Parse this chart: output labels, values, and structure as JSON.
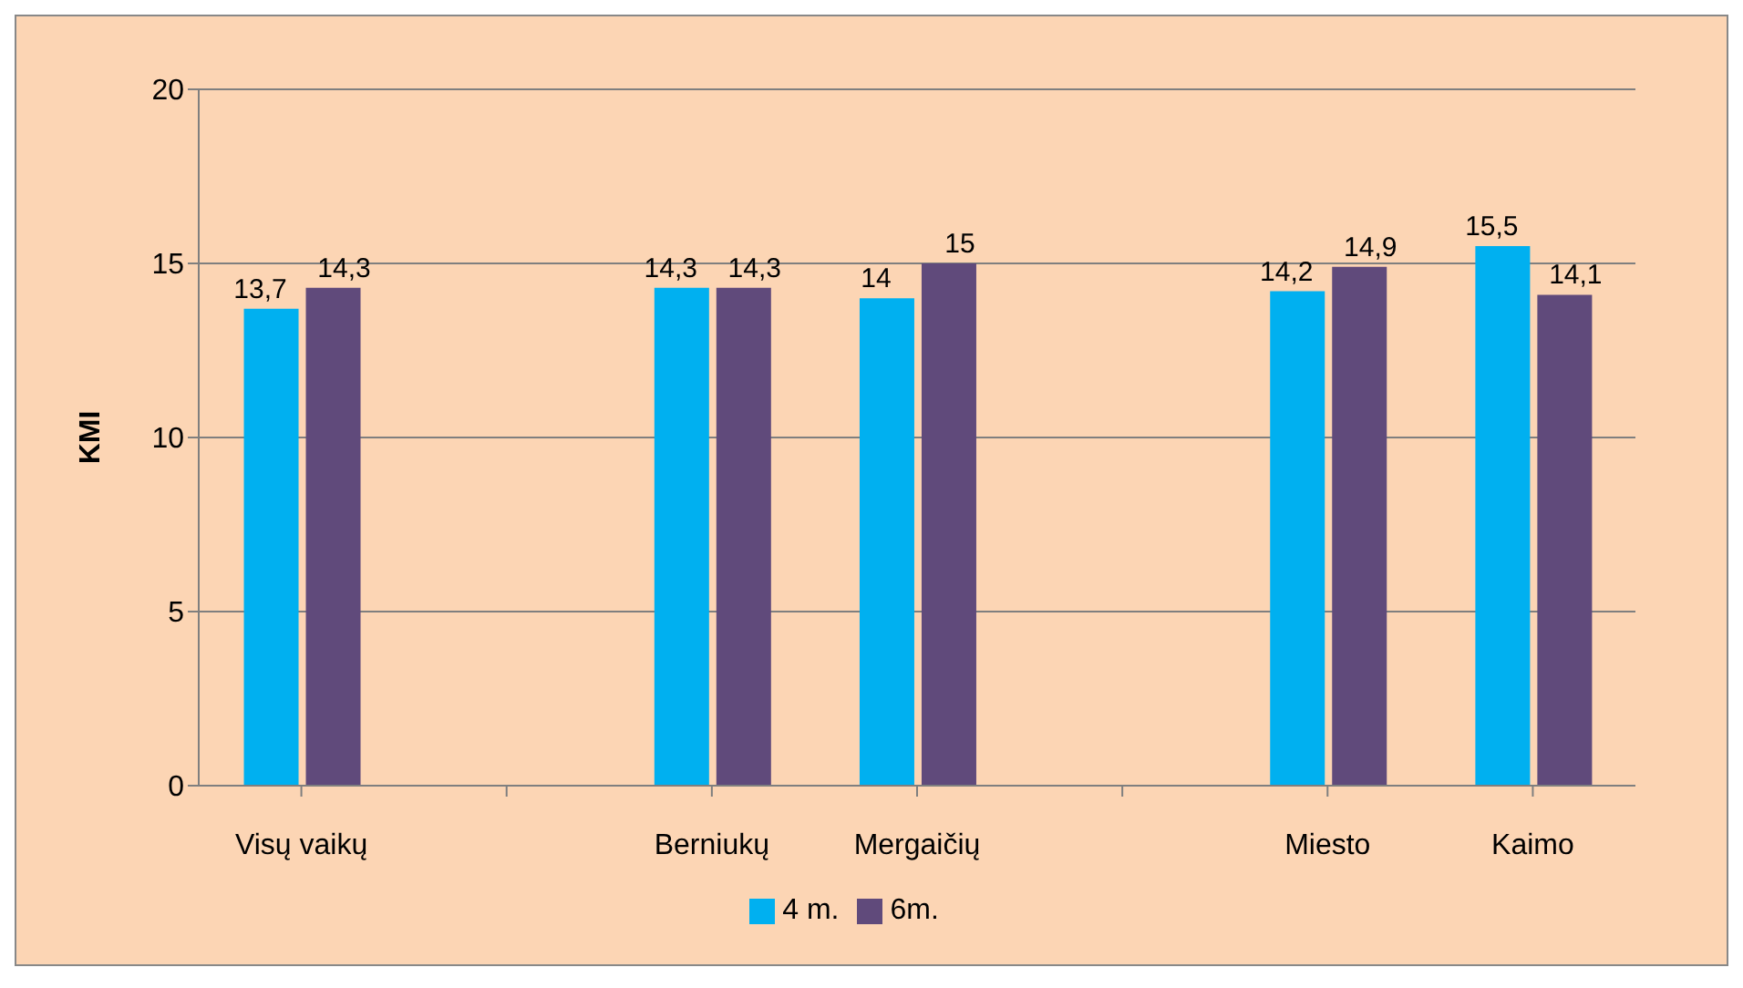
{
  "chart_data": {
    "type": "bar",
    "ylabel": "KMI",
    "categories": [
      "Visų vaikų",
      null,
      "Berniukų",
      "Mergaičių",
      null,
      "Miesto",
      "Kaimo"
    ],
    "series": [
      {
        "name": "4 m.",
        "color": "#00b0f0",
        "values": [
          13.7,
          null,
          14.3,
          14,
          null,
          14.2,
          15.5
        ],
        "value_labels": [
          "13,7",
          null,
          "14,3",
          "14",
          null,
          "14,2",
          "15,5"
        ]
      },
      {
        "name": "6m.",
        "color": "#604a7b",
        "values": [
          14.3,
          null,
          14.3,
          15,
          null,
          14.9,
          14.1
        ],
        "value_labels": [
          "14,3",
          null,
          "14,3",
          "15",
          null,
          "14,9",
          "14,1"
        ]
      }
    ],
    "ylim": [
      0,
      20
    ],
    "yticks": [
      0,
      5,
      10,
      15,
      20
    ],
    "grid": "y",
    "legend": "bottom"
  }
}
